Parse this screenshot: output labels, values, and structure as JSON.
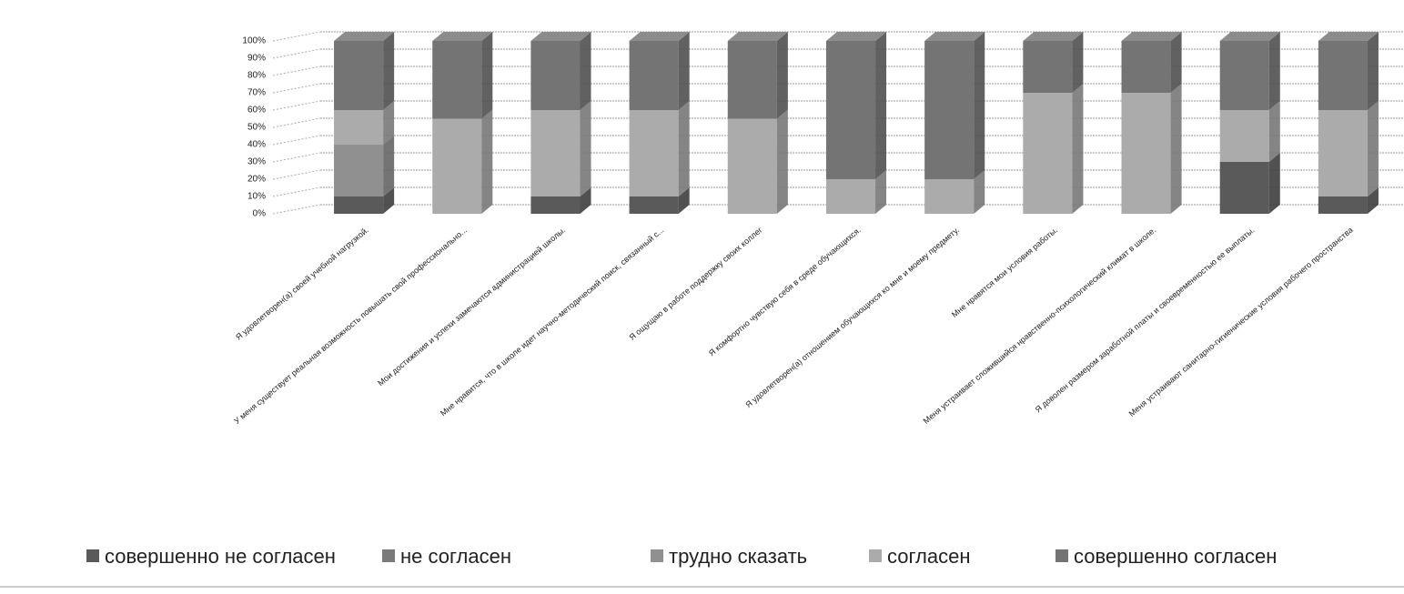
{
  "chart_data": {
    "type": "bar",
    "stacked": true,
    "categories": [
      "Я удовлетворен(а) своей учебной нагрузкой.",
      "У меня существует реальная возможность повышать свой профессионально...",
      "Мои достижения и успехи замечаются администрацией школы.",
      "Мне нравится, что в школе идет научно-методический поиск, связанный с...",
      "Я ощущаю в работе поддержку своих коллег",
      "Я комфортно чувствую себя в среде обучающихся.",
      "Я удовлетворен(а) отношением обучающихся ко мне и моему предмету.",
      "Мне нравятся мои условия работы.",
      "Меня устраивает сложившийся нравственно-психологический климат в школе.",
      "Я доволен размером заработной платы и своевременностью ее выплаты.",
      "Меня устраивают санитарно-гигиенические условия рабочего пространства"
    ],
    "series": [
      {
        "name": "совершенно не согласен",
        "color": "#5a5a5a",
        "values": [
          10,
          0,
          10,
          10,
          0,
          0,
          0,
          0,
          0,
          30,
          10
        ]
      },
      {
        "name": "не согласен",
        "color": "#7a7a7a",
        "values": [
          0,
          0,
          0,
          0,
          0,
          0,
          0,
          0,
          0,
          0,
          0
        ]
      },
      {
        "name": "трудно сказать",
        "color": "#909090",
        "values": [
          30,
          0,
          0,
          0,
          0,
          0,
          0,
          0,
          0,
          0,
          0
        ]
      },
      {
        "name": "согласен",
        "color": "#ababab",
        "values": [
          20,
          55,
          50,
          50,
          55,
          20,
          20,
          70,
          70,
          30,
          50
        ]
      },
      {
        "name": "совершенно согласен",
        "color": "#747474",
        "values": [
          40,
          45,
          40,
          40,
          45,
          80,
          80,
          30,
          30,
          40,
          40
        ]
      }
    ],
    "ylim": [
      0,
      100
    ],
    "yticks": [
      {
        "value": 0,
        "label": "0%"
      },
      {
        "value": 10,
        "label": "10%"
      },
      {
        "value": 20,
        "label": "20%"
      },
      {
        "value": 30,
        "label": "30%"
      },
      {
        "value": 40,
        "label": "40%"
      },
      {
        "value": 50,
        "label": "50%"
      },
      {
        "value": 60,
        "label": "60%"
      },
      {
        "value": 70,
        "label": "70%"
      },
      {
        "value": 80,
        "label": "80%"
      },
      {
        "value": 90,
        "label": "90%"
      },
      {
        "value": 100,
        "label": "100%"
      }
    ],
    "grid": true
  }
}
